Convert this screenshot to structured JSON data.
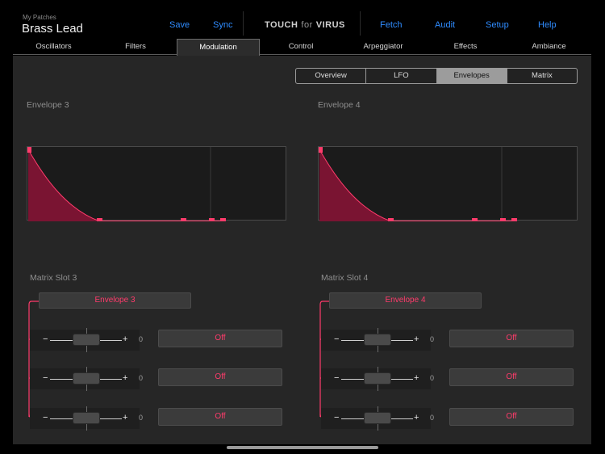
{
  "header": {
    "patch_caption": "My Patches",
    "patch_name": "Brass Lead",
    "save_label": "Save",
    "sync_label": "Sync",
    "logo_touch": "TOUCH",
    "logo_for": "for",
    "logo_virus": "VIRUS",
    "fetch_label": "Fetch",
    "audit_label": "Audit",
    "setup_label": "Setup",
    "help_label": "Help"
  },
  "tabs": [
    "Oscillators",
    "Filters",
    "Modulation",
    "Control",
    "Arpeggiator",
    "Effects",
    "Ambiance"
  ],
  "active_tab": "Modulation",
  "segments": [
    "Overview",
    "LFO",
    "Envelopes",
    "Matrix"
  ],
  "active_segment": "Envelopes",
  "envelopes": [
    {
      "title": "Envelope 3"
    },
    {
      "title": "Envelope 4"
    }
  ],
  "matrix_slots": [
    {
      "title": "Matrix Slot 3",
      "source": "Envelope 3",
      "rows": [
        {
          "minus": "−",
          "plus": "+",
          "amount": "0",
          "destination": "Off"
        },
        {
          "minus": "−",
          "plus": "+",
          "amount": "0",
          "destination": "Off"
        },
        {
          "minus": "−",
          "plus": "+",
          "amount": "0",
          "destination": "Off"
        }
      ]
    },
    {
      "title": "Matrix Slot 4",
      "source": "Envelope 4",
      "rows": [
        {
          "minus": "−",
          "plus": "+",
          "amount": "0",
          "destination": "Off"
        },
        {
          "minus": "−",
          "plus": "+",
          "amount": "0",
          "destination": "Off"
        },
        {
          "minus": "−",
          "plus": "+",
          "amount": "0",
          "destination": "Off"
        }
      ]
    }
  ],
  "colors": {
    "accent": "#2f8cff",
    "envelope": "#ff3b6b",
    "envelope_fill": "#7a1432"
  }
}
